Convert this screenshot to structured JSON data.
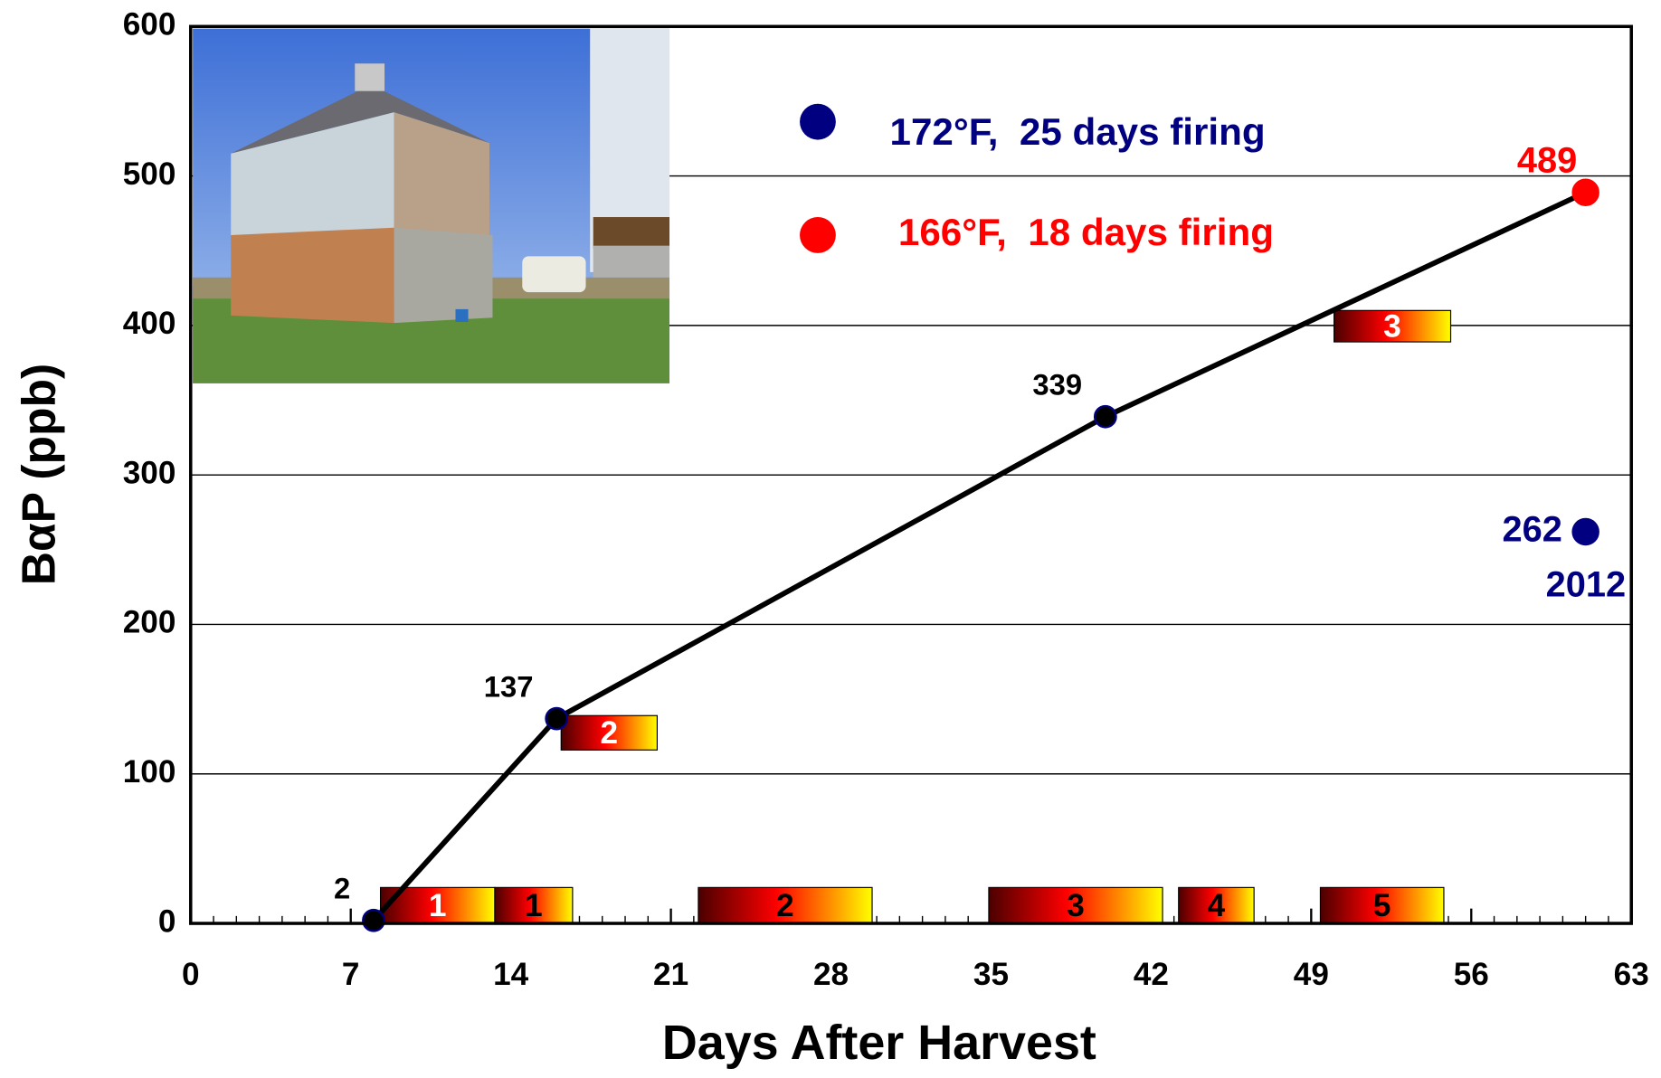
{
  "chart_data": {
    "type": "line",
    "x_label": "Days After Harvest",
    "y_label": "BαP (ppb)",
    "xlim": [
      0,
      63
    ],
    "xticks": [
      0,
      7,
      14,
      21,
      28,
      35,
      42,
      49,
      56,
      63
    ],
    "x_minor_tick_step": 1,
    "ylim": [
      0,
      600
    ],
    "yticks": [
      0,
      100,
      200,
      300,
      400,
      500,
      600
    ],
    "grid": true,
    "line_color": "#000000",
    "series": [
      {
        "name": "172°F,  25 days firing",
        "color": "#000080",
        "x": [
          61
        ],
        "values": [
          262
        ],
        "annotation": "2012",
        "connected": false
      },
      {
        "name": "166°F,  18 days firing",
        "color": "#ff0000",
        "x": [
          8,
          16,
          40,
          61
        ],
        "values": [
          2,
          137,
          339,
          489
        ],
        "point_colors": [
          "#000000",
          "#000000",
          "#000000",
          "#ff0000"
        ],
        "connected": true
      }
    ],
    "firing_periods": [
      {
        "label": "1",
        "start": 8.3,
        "end": 13.3,
        "low": 0,
        "high": 24,
        "label_color": "#ffffff"
      },
      {
        "label": "1",
        "start": 13.3,
        "end": 16.7,
        "low": 0,
        "high": 24,
        "label_color": "#000000"
      },
      {
        "label": "2",
        "start": 22.2,
        "end": 29.8,
        "low": 0,
        "high": 24,
        "label_color": "#000000"
      },
      {
        "label": "3",
        "start": 34.9,
        "end": 42.5,
        "low": 0,
        "high": 24,
        "label_color": "#000000"
      },
      {
        "label": "4",
        "start": 43.2,
        "end": 46.5,
        "low": 0,
        "high": 24,
        "label_color": "#000000"
      },
      {
        "label": "5",
        "start": 49.4,
        "end": 54.8,
        "low": 0,
        "high": 24,
        "label_color": "#000000"
      },
      {
        "label": "2",
        "start": 16.2,
        "end": 20.4,
        "low": 116,
        "high": 139,
        "label_color": "#ffffff"
      },
      {
        "label": "3",
        "start": 50,
        "end": 55.1,
        "low": 389,
        "high": 410,
        "label_color": "#ffffff"
      }
    ]
  }
}
